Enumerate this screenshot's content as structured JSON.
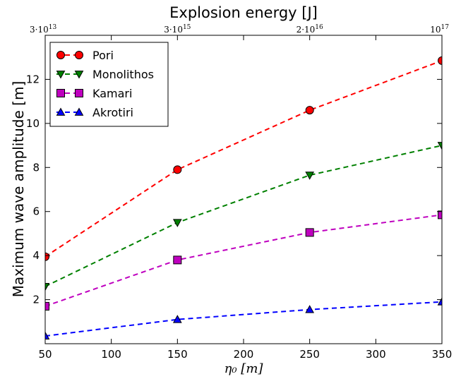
{
  "chart_data": {
    "type": "line",
    "xlabel": "η₀ [m]",
    "ylabel": "Maximum wave amplitude [m]",
    "top_xlabel": "Explosion energy [J]",
    "xlim": [
      50,
      350
    ],
    "ylim": [
      0,
      14
    ],
    "x_ticks": [
      "50",
      "100",
      "150",
      "200",
      "250",
      "300",
      "350"
    ],
    "y_ticks": [
      "2",
      "4",
      "6",
      "8",
      "10",
      "12"
    ],
    "top_ticks": [
      {
        "x": 50,
        "mantissa": "3·10",
        "exponent": "13"
      },
      {
        "x": 150,
        "mantissa": "3·10",
        "exponent": "15"
      },
      {
        "x": 250,
        "mantissa": "2·10",
        "exponent": "16"
      },
      {
        "x": 350,
        "mantissa": "10",
        "exponent": "17"
      }
    ],
    "grid": false,
    "legend_position": "top-left",
    "x": [
      50,
      150,
      250,
      350
    ],
    "series": [
      {
        "name": "Pori",
        "values": [
          3.95,
          7.9,
          10.6,
          12.85
        ],
        "color": "#ff0000",
        "marker": "circle"
      },
      {
        "name": "Monolithos",
        "values": [
          2.6,
          5.5,
          7.65,
          9.0
        ],
        "color": "#008000",
        "marker": "triangle-down"
      },
      {
        "name": "Kamari",
        "values": [
          1.7,
          3.8,
          5.05,
          5.85
        ],
        "color": "#bf00bf",
        "marker": "square"
      },
      {
        "name": "Akrotiri",
        "values": [
          0.35,
          1.1,
          1.55,
          1.9
        ],
        "color": "#0000ff",
        "marker": "triangle-up"
      }
    ]
  }
}
